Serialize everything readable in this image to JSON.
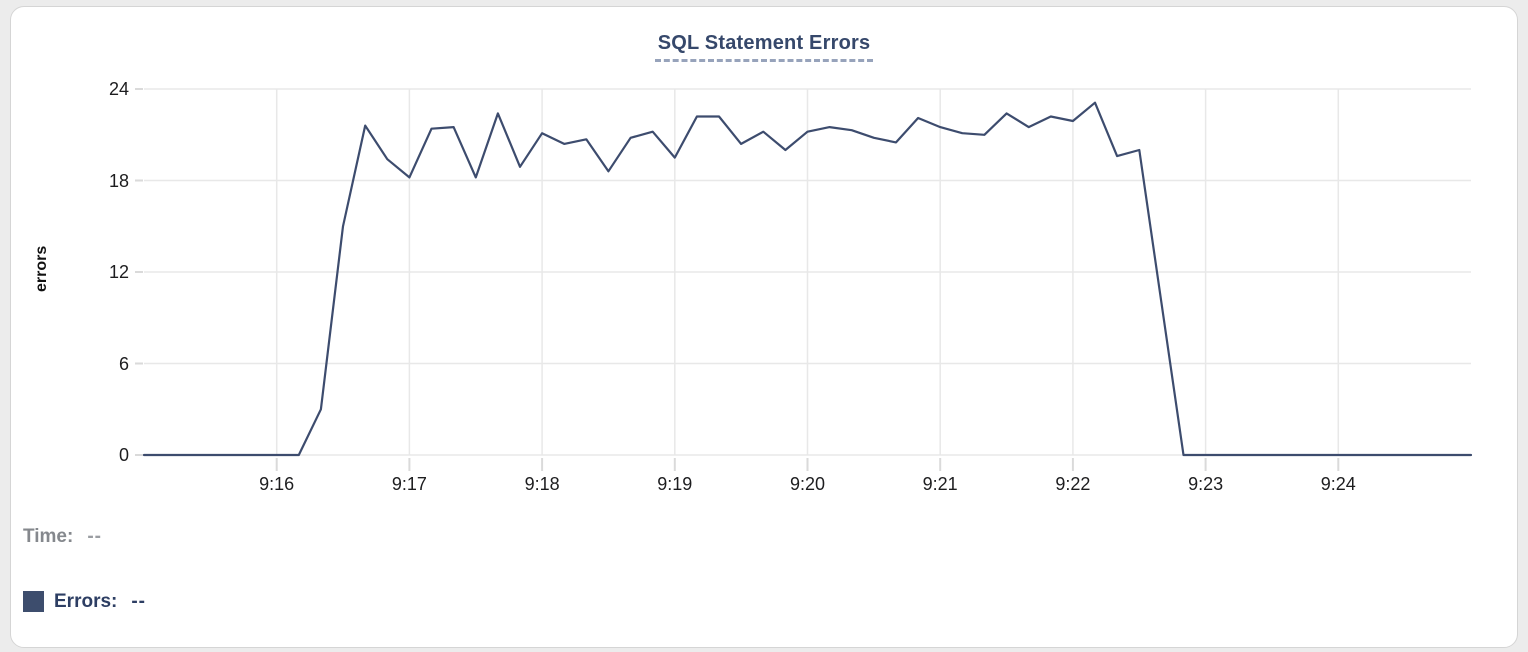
{
  "panel": {
    "title": "SQL Statement Errors"
  },
  "chart_data": {
    "type": "line",
    "title": "SQL Statement Errors",
    "xlabel": "",
    "ylabel": "errors",
    "ylim": [
      0,
      24
    ],
    "y_ticks": [
      0,
      6,
      12,
      18,
      24
    ],
    "x_ticks": [
      "9:16",
      "9:17",
      "9:18",
      "9:19",
      "9:20",
      "9:21",
      "9:22",
      "9:23",
      "9:24"
    ],
    "x_start": "9:15:00",
    "x_end": "9:25:00",
    "grid": true,
    "legend_position": "bottom-left",
    "series": [
      {
        "name": "Errors",
        "color": "#3d4c6e",
        "times": [
          "9:15:00",
          "9:15:10",
          "9:15:20",
          "9:15:30",
          "9:15:40",
          "9:15:50",
          "9:16:00",
          "9:16:10",
          "9:16:20",
          "9:16:30",
          "9:16:40",
          "9:16:50",
          "9:17:00",
          "9:17:10",
          "9:17:20",
          "9:17:30",
          "9:17:40",
          "9:17:50",
          "9:18:00",
          "9:18:10",
          "9:18:20",
          "9:18:30",
          "9:18:40",
          "9:18:50",
          "9:19:00",
          "9:19:10",
          "9:19:20",
          "9:19:30",
          "9:19:40",
          "9:19:50",
          "9:20:00",
          "9:20:10",
          "9:20:20",
          "9:20:30",
          "9:20:40",
          "9:20:50",
          "9:21:00",
          "9:21:10",
          "9:21:20",
          "9:21:30",
          "9:21:40",
          "9:21:50",
          "9:22:00",
          "9:22:10",
          "9:22:20",
          "9:22:30",
          "9:22:40",
          "9:22:50",
          "9:23:00",
          "9:23:10",
          "9:23:20",
          "9:23:30",
          "9:23:40",
          "9:23:50",
          "9:24:00",
          "9:24:10",
          "9:24:20",
          "9:24:30",
          "9:24:40",
          "9:24:50",
          "9:25:00"
        ],
        "values": [
          0,
          0,
          0,
          0,
          0,
          0,
          0,
          0,
          3,
          15,
          21.6,
          19.4,
          18.2,
          21.4,
          21.5,
          18.2,
          22.4,
          18.9,
          21.1,
          20.4,
          20.7,
          18.6,
          20.8,
          21.2,
          19.5,
          22.2,
          22.2,
          20.4,
          21.2,
          20,
          21.2,
          21.5,
          21.3,
          20.8,
          20.5,
          22.1,
          21.5,
          21.1,
          21,
          22.4,
          21.5,
          22.2,
          21.9,
          23.1,
          19.6,
          20,
          10,
          0,
          0,
          0,
          0,
          0,
          0,
          0,
          0,
          0,
          0,
          0,
          0,
          0,
          0
        ]
      }
    ]
  },
  "legend": {
    "time_label": "Time:",
    "time_value": "--",
    "errors_label": "Errors:",
    "errors_value": "--",
    "swatch_color": "#3d4d6d"
  },
  "colors": {
    "line": "#3d4c6e",
    "title": "#36486b",
    "grid": "#e8e8e8",
    "panel_border": "#d5d5d5"
  }
}
